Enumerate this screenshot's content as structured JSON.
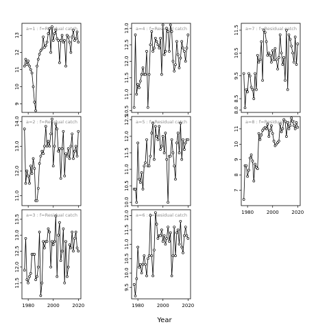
{
  "figure": {
    "xlabel": "Year"
  },
  "chart_data": [
    {
      "type": "line",
      "label": "a=1 : f=Residual catch",
      "xlim": [
        1975,
        2022
      ],
      "ylim": [
        8.5,
        13.7
      ],
      "yticks": [
        "9",
        "10",
        "11",
        "12",
        "13"
      ],
      "xticks": [],
      "x": [
        1977,
        1978,
        1979,
        1980,
        1981,
        1982,
        1983,
        1984,
        1985,
        1986,
        1987,
        1988,
        1989,
        1990,
        1991,
        1992,
        1993,
        1994,
        1995,
        1996,
        1997,
        1998,
        1999,
        2000,
        2001,
        2002,
        2003,
        2004,
        2005,
        2006,
        2007,
        2008,
        2009,
        2010,
        2011,
        2012,
        2013,
        2014,
        2015,
        2016,
        2017,
        2018,
        2019,
        2020
      ],
      "y": [
        11.2,
        11.6,
        11.3,
        11.5,
        11.2,
        11.0,
        10.8,
        10.0,
        9.1,
        8.6,
        11.2,
        11.6,
        11.9,
        12.1,
        12.2,
        12.9,
        12.3,
        12.4,
        12.6,
        13.1,
        13.4,
        12.0,
        13.5,
        12.7,
        13.1,
        13.3,
        12.8,
        12.7,
        11.4,
        12.7,
        13.0,
        12.6,
        12.7,
        11.2,
        13.0,
        12.9,
        12.6,
        12.0,
        12.9,
        13.3,
        12.7,
        12.8,
        13.2,
        12.6
      ]
    },
    {
      "type": "line",
      "label": "a=2 : f=Residual catch",
      "xlim": [
        1975,
        2022
      ],
      "ylim": [
        10.6,
        14.2
      ],
      "yticks": [
        "11.0",
        "12.0",
        "13.0",
        "14.0"
      ],
      "xticks": [],
      "x": [
        1977,
        1978,
        1979,
        1980,
        1981,
        1982,
        1983,
        1984,
        1985,
        1986,
        1987,
        1988,
        1989,
        1990,
        1991,
        1992,
        1993,
        1994,
        1995,
        1996,
        1997,
        1998,
        1999,
        2000,
        2001,
        2002,
        2003,
        2004,
        2005,
        2006,
        2007,
        2008,
        2009,
        2010,
        2011,
        2012,
        2013,
        2014,
        2015,
        2016,
        2017,
        2018,
        2019,
        2020
      ],
      "y": [
        13.7,
        11.5,
        12.0,
        11.8,
        11.5,
        12.2,
        11.9,
        12.5,
        12.1,
        10.8,
        10.8,
        11.3,
        12.3,
        12.6,
        12.8,
        12.7,
        13.0,
        13.8,
        13.0,
        13.2,
        13.0,
        13.5,
        14.1,
        12.2,
        13.0,
        13.9,
        13.7,
        12.8,
        12.9,
        11.7,
        12.9,
        13.6,
        11.8,
        12.7,
        12.6,
        12.9,
        12.5,
        13.0,
        13.5,
        12.5,
        12.8,
        13.0,
        12.6,
        13.6
      ]
    },
    {
      "type": "line",
      "label": "a=3 : f=Residual catch",
      "xlim": [
        1975,
        2022
      ],
      "ylim": [
        11.0,
        13.8
      ],
      "yticks": [
        "11.5",
        "12.0",
        "12.5",
        "13.0",
        "13.5"
      ],
      "xticks": [
        "1980",
        "2000",
        "2020"
      ],
      "x": [
        1977,
        1978,
        1979,
        1980,
        1981,
        1982,
        1983,
        1984,
        1985,
        1986,
        1987,
        1988,
        1989,
        1990,
        1991,
        1992,
        1993,
        1994,
        1995,
        1996,
        1997,
        1998,
        1999,
        2000,
        2001,
        2002,
        2003,
        2004,
        2005,
        2006,
        2007,
        2008,
        2009,
        2010,
        2011,
        2012,
        2013,
        2014,
        2015,
        2016,
        2017,
        2018,
        2019,
        2020
      ],
      "y": [
        11.9,
        12.9,
        11.6,
        11.5,
        11.7,
        11.8,
        12.4,
        12.4,
        12.4,
        11.6,
        11.7,
        12.0,
        13.1,
        11.1,
        11.5,
        12.8,
        12.6,
        12.8,
        12.8,
        13.2,
        13.1,
        12.0,
        12.8,
        12.7,
        12.8,
        13.6,
        11.7,
        13.0,
        13.4,
        12.2,
        12.5,
        13.2,
        11.5,
        12.8,
        11.7,
        12.0,
        12.7,
        12.6,
        13.1,
        12.5,
        12.9,
        13.1,
        12.6,
        12.5
      ]
    },
    {
      "type": "line",
      "label": "a=4 : f=Residual catch",
      "xlim": [
        1975,
        2022
      ],
      "ylim": [
        10.45,
        13.15
      ],
      "yticks": [
        "10.5",
        "11.0",
        "11.5",
        "12.0",
        "12.5",
        "13.0"
      ],
      "xticks": [],
      "x": [
        1977,
        1978,
        1979,
        1980,
        1981,
        1982,
        1983,
        1984,
        1985,
        1986,
        1987,
        1988,
        1989,
        1990,
        1991,
        1992,
        1993,
        1994,
        1995,
        1996,
        1997,
        1998,
        1999,
        2000,
        2001,
        2002,
        2003,
        2004,
        2005,
        2006,
        2007,
        2008,
        2009,
        2010,
        2011,
        2012,
        2013,
        2014,
        2015,
        2016,
        2017,
        2018,
        2019,
        2020
      ],
      "y": [
        10.6,
        12.8,
        11.0,
        11.3,
        11.2,
        11.4,
        11.6,
        11.8,
        11.6,
        11.6,
        12.3,
        10.6,
        11.6,
        12.5,
        12.9,
        12.3,
        12.4,
        12.7,
        12.6,
        12.5,
        12.4,
        12.7,
        11.6,
        13.1,
        12.2,
        12.3,
        13.0,
        12.9,
        12.3,
        13.1,
        12.9,
        12.0,
        11.7,
        11.9,
        12.6,
        12.2,
        11.8,
        12.1,
        12.6,
        12.4,
        12.3,
        12.0,
        12.4,
        12.8
      ]
    },
    {
      "type": "line",
      "label": "a=5 : f=Residual catch",
      "xlim": [
        1975,
        2022
      ],
      "ylim": [
        9.9,
        12.6
      ],
      "yticks": [
        "10.0",
        "10.5",
        "11.0",
        "11.5",
        "12.0",
        "12.5"
      ],
      "xticks": [],
      "x": [
        1977,
        1978,
        1979,
        1980,
        1981,
        1982,
        1983,
        1984,
        1985,
        1986,
        1987,
        1988,
        1989,
        1990,
        1991,
        1992,
        1993,
        1994,
        1995,
        1996,
        1997,
        1998,
        1999,
        2000,
        2001,
        2002,
        2003,
        2004,
        2005,
        2006,
        2007,
        2008,
        2009,
        2010,
        2011,
        2012,
        2013,
        2014,
        2015,
        2016,
        2017,
        2018,
        2019,
        2020
      ],
      "y": [
        10.4,
        10.4,
        10.0,
        11.8,
        10.7,
        10.6,
        10.9,
        10.4,
        11.1,
        11.2,
        11.9,
        11.1,
        11.1,
        11.4,
        12.1,
        12.4,
        11.3,
        12.3,
        12.0,
        11.9,
        12.3,
        11.6,
        11.7,
        12.0,
        11.5,
        12.1,
        11.3,
        10.0,
        11.4,
        11.4,
        11.9,
        11.5,
        11.1,
        10.7,
        11.8,
        12.1,
        11.5,
        12.4,
        11.3,
        11.9,
        11.6,
        11.8,
        11.9,
        11.9
      ]
    },
    {
      "type": "line",
      "label": "a=6 : f=Residual catch",
      "xlim": [
        1975,
        2022
      ],
      "ylim": [
        9.1,
        12.2
      ],
      "yticks": [
        "9.5",
        "10.0",
        "10.5",
        "11.0",
        "11.5",
        "12.0"
      ],
      "xticks": [
        "1980",
        "2000",
        "2020"
      ],
      "x": [
        1977,
        1978,
        1979,
        1980,
        1981,
        1982,
        1983,
        1984,
        1985,
        1986,
        1987,
        1988,
        1989,
        1990,
        1991,
        1992,
        1993,
        1994,
        1995,
        1996,
        1997,
        1998,
        1999,
        2000,
        2001,
        2002,
        2003,
        2004,
        2005,
        2006,
        2007,
        2008,
        2009,
        2010,
        2011,
        2012,
        2013,
        2014,
        2015,
        2016,
        2017,
        2018,
        2019,
        2020
      ],
      "y": [
        9.6,
        9.2,
        9.8,
        10.9,
        10.2,
        10.3,
        10.0,
        10.3,
        10.6,
        10.3,
        9.9,
        10.5,
        10.6,
        12.0,
        10.6,
        9.9,
        10.8,
        12.1,
        11.7,
        11.2,
        11.3,
        11.3,
        11.5,
        11.1,
        11.3,
        11.0,
        11.2,
        11.6,
        11.1,
        11.4,
        9.9,
        10.6,
        11.6,
        10.6,
        11.4,
        11.5,
        11.0,
        11.8,
        10.9,
        10.7,
        11.3,
        11.6,
        11.3,
        11.2
      ]
    },
    {
      "type": "line",
      "label": "a=7 : f=Residual catch",
      "xlim": [
        1975,
        2022
      ],
      "ylim": [
        7.9,
        11.8
      ],
      "yticks": [
        "8.0",
        "8.5",
        "9.5",
        "10.5",
        "11.5"
      ],
      "xticks": [],
      "x": [
        1977,
        1978,
        1979,
        1980,
        1981,
        1982,
        1983,
        1984,
        1985,
        1986,
        1987,
        1988,
        1989,
        1990,
        1991,
        1992,
        1993,
        1994,
        1995,
        1996,
        1997,
        1998,
        1999,
        2000,
        2001,
        2002,
        2003,
        2004,
        2005,
        2006,
        2007,
        2008,
        2009,
        2010,
        2011,
        2012,
        2013,
        2014,
        2015,
        2016,
        2017,
        2018,
        2019,
        2020
      ],
      "y": [
        9.6,
        8.1,
        8.9,
        8.8,
        9.6,
        9.5,
        9.0,
        8.9,
        8.5,
        9.6,
        8.9,
        10.4,
        10.1,
        10.2,
        11.0,
        9.3,
        11.5,
        11.4,
        11.0,
        10.4,
        10.5,
        10.4,
        10.1,
        10.6,
        10.2,
        10.7,
        10.2,
        9.8,
        10.3,
        11.3,
        10.5,
        10.0,
        10.3,
        9.3,
        11.5,
        8.9,
        11.3,
        11.1,
        10.8,
        10.5,
        10.1,
        11.2,
        10.0,
        10.9
      ]
    },
    {
      "type": "line",
      "label": "a=8 : f=Residual catch",
      "xlim": [
        1975,
        2022
      ],
      "ylim": [
        6.0,
        11.8
      ],
      "yticks": [
        "7",
        "8",
        "9",
        "10",
        "11"
      ],
      "xticks": [
        "1980",
        "2000",
        "2020"
      ],
      "x": [
        1977,
        1978,
        1979,
        1980,
        1981,
        1982,
        1983,
        1984,
        1985,
        1986,
        1987,
        1988,
        1989,
        1990,
        1991,
        1992,
        1993,
        1994,
        1995,
        1996,
        1997,
        1998,
        1999,
        2000,
        2001,
        2002,
        2003,
        2004,
        2005,
        2006,
        2007,
        2008,
        2009,
        2010,
        2011,
        2012,
        2013,
        2014,
        2015,
        2016,
        2017,
        2018,
        2019,
        2020
      ],
      "y": [
        6.4,
        8.6,
        8.6,
        7.9,
        8.3,
        9.1,
        9.3,
        8.9,
        7.6,
        8.7,
        8.5,
        8.4,
        10.7,
        10.3,
        10.6,
        10.9,
        11.0,
        11.1,
        11.0,
        11.3,
        10.5,
        10.9,
        11.2,
        10.7,
        10.2,
        9.9,
        10.0,
        10.1,
        10.2,
        11.3,
        10.8,
        11.0,
        11.6,
        11.5,
        10.5,
        11.4,
        11.0,
        11.2,
        11.7,
        11.5,
        11.2,
        11.0,
        11.4,
        11.1
      ]
    }
  ]
}
